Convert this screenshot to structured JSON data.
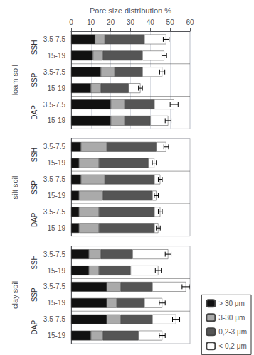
{
  "chart_data": [
    {
      "type": "bar",
      "orientation": "horizontal",
      "stacked": true,
      "xlabel": "Pore size distribution %",
      "ylabel": "loam soil",
      "xlim": [
        0,
        60
      ],
      "xticks": [
        0,
        10,
        20,
        30,
        40,
        50,
        60
      ],
      "grid": true,
      "edge_color": "#444444",
      "category_groups": [
        {
          "name": "SSH",
          "categories": [
            "3.5-7.5",
            "15-19"
          ]
        },
        {
          "name": "SSP",
          "categories": [
            "3.5-7.5",
            "15-19"
          ]
        },
        {
          "name": "DAP",
          "categories": [
            "3.5-7.5",
            "15-19"
          ]
        }
      ],
      "series": [
        {
          "name": "> 30 μm",
          "color": "#111111",
          "values": [
            12,
            11,
            15,
            10,
            20,
            20
          ]
        },
        {
          "name": "3-30 μm",
          "color": "#aaaaaa",
          "values": [
            5,
            5,
            7,
            5,
            7,
            7
          ]
        },
        {
          "name": "0,2-3 μm",
          "color": "#555555",
          "values": [
            20,
            20,
            14,
            14,
            15,
            13
          ]
        },
        {
          "name": "< 0,2 μm",
          "color": "#ffffff",
          "values": [
            11,
            11,
            10,
            6,
            10,
            9
          ]
        }
      ],
      "error_bars": {
        "color": "#000000",
        "points": [
          {
            "value": 48,
            "error": 1.5
          },
          {
            "value": 47,
            "error": 1.2
          },
          {
            "value": 46,
            "error": 1.3
          },
          {
            "value": 35,
            "error": 1.0
          },
          {
            "value": 52,
            "error": 2.0
          },
          {
            "value": 49,
            "error": 1.5
          }
        ]
      }
    },
    {
      "type": "bar",
      "orientation": "horizontal",
      "stacked": true,
      "ylabel": "silt soil",
      "xlim": [
        0,
        60
      ],
      "grid": false,
      "tick_labels": false,
      "edge_color": "#444444",
      "category_groups": [
        {
          "name": "SSH",
          "categories": [
            "3.5-7.5",
            "15-19"
          ]
        },
        {
          "name": "SSP",
          "categories": [
            "3.5-7.5",
            "15-19"
          ]
        },
        {
          "name": "DAP",
          "categories": [
            "3.5-7.5",
            "15-19"
          ]
        }
      ],
      "series": [
        {
          "name": "> 30 μm",
          "color": "#111111",
          "values": [
            5,
            4,
            5,
            4,
            4,
            4
          ]
        },
        {
          "name": "3-30 μm",
          "color": "#aaaaaa",
          "values": [
            13,
            10,
            12,
            12,
            10,
            10
          ]
        },
        {
          "name": "0,2-3 μm",
          "color": "#555555",
          "values": [
            25,
            25,
            25,
            25,
            28,
            28
          ]
        },
        {
          "name": "< 0,2 μm",
          "color": "#ffffff",
          "values": [
            5,
            3,
            3,
            2,
            3,
            2
          ]
        }
      ],
      "error_bars": {
        "color": "#000000",
        "points": [
          {
            "value": 48,
            "error": 1.2
          },
          {
            "value": 42,
            "error": 1.0
          },
          {
            "value": 45,
            "error": 1.0
          },
          {
            "value": 43,
            "error": 1.0
          },
          {
            "value": 45,
            "error": 1.0
          },
          {
            "value": 44,
            "error": 1.0
          }
        ]
      }
    },
    {
      "type": "bar",
      "orientation": "horizontal",
      "stacked": true,
      "ylabel": "clay soil",
      "xlim": [
        0,
        60
      ],
      "grid": false,
      "tick_labels": false,
      "edge_color": "#444444",
      "legend": "right",
      "category_groups": [
        {
          "name": "SSH",
          "categories": [
            "3.5-7.5",
            "15-19"
          ]
        },
        {
          "name": "SSP",
          "categories": [
            "3.5-7.5",
            "15-19"
          ]
        },
        {
          "name": "DAP",
          "categories": [
            "3.5-7.5",
            "15-19"
          ]
        }
      ],
      "series": [
        {
          "name": "> 30 μm",
          "color": "#111111",
          "values": [
            9,
            9,
            18,
            18,
            18,
            10
          ]
        },
        {
          "name": "3-30 μm",
          "color": "#aaaaaa",
          "values": [
            6,
            5,
            7,
            5,
            7,
            6
          ]
        },
        {
          "name": "0,2-3 μm",
          "color": "#555555",
          "values": [
            16,
            16,
            16,
            14,
            16,
            18
          ]
        },
        {
          "name": "< 0,2 μm",
          "color": "#ffffff",
          "values": [
            18,
            14,
            17,
            9,
            12,
            12
          ]
        }
      ],
      "error_bars": {
        "color": "#000000",
        "points": [
          {
            "value": 49,
            "error": 1.5
          },
          {
            "value": 44,
            "error": 1.5
          },
          {
            "value": 58,
            "error": 2.0
          },
          {
            "value": 46,
            "error": 1.5
          },
          {
            "value": 53,
            "error": 1.8
          },
          {
            "value": 46,
            "error": 1.5
          }
        ]
      }
    }
  ]
}
